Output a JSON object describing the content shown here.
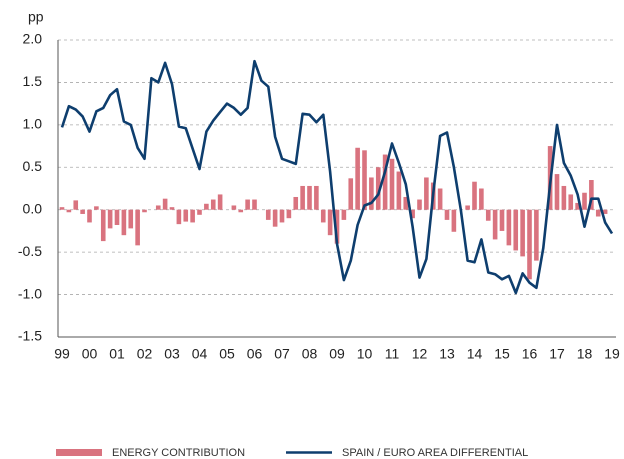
{
  "chart_data": {
    "type": "bar_line",
    "y_label": "pp",
    "categories": [
      "99",
      null,
      null,
      null,
      "00",
      null,
      null,
      null,
      "01",
      null,
      null,
      null,
      "02",
      null,
      null,
      null,
      "03",
      null,
      null,
      null,
      "04",
      null,
      null,
      null,
      "05",
      null,
      null,
      null,
      "06",
      null,
      null,
      null,
      "07",
      null,
      null,
      null,
      "08",
      null,
      null,
      null,
      "09",
      null,
      null,
      null,
      "10",
      null,
      null,
      null,
      "11",
      null,
      null,
      null,
      "12",
      null,
      null,
      null,
      "13",
      null,
      null,
      null,
      "14",
      null,
      null,
      null,
      "15",
      null,
      null,
      null,
      "16",
      null,
      null,
      null,
      "17",
      null,
      null,
      null,
      "18",
      null,
      null,
      null,
      "19"
    ],
    "series": [
      {
        "name": "ENERGY CONTRIBUTION",
        "type": "bar",
        "color": "#d9737f",
        "values": [
          0.03,
          -0.03,
          0.11,
          -0.05,
          -0.15,
          0.04,
          -0.37,
          -0.22,
          -0.18,
          -0.3,
          -0.22,
          -0.42,
          -0.03,
          0.0,
          0.05,
          0.13,
          0.03,
          -0.17,
          -0.14,
          -0.15,
          -0.06,
          0.07,
          0.12,
          0.18,
          0.0,
          0.05,
          -0.03,
          0.12,
          0.12,
          0.0,
          -0.12,
          -0.2,
          -0.15,
          -0.1,
          0.15,
          0.28,
          0.28,
          0.28,
          -0.15,
          -0.3,
          -0.4,
          -0.12,
          0.37,
          0.73,
          0.7,
          0.38,
          0.5,
          0.65,
          0.6,
          0.45,
          0.15,
          -0.1,
          0.12,
          0.38,
          0.32,
          0.25,
          -0.12,
          -0.26,
          0.0,
          0.05,
          0.33,
          0.25,
          -0.13,
          -0.35,
          -0.25,
          -0.42,
          -0.48,
          -0.55,
          -0.82,
          -0.6,
          0.0,
          0.75,
          0.42,
          0.28,
          0.18,
          0.08,
          0.2,
          0.35,
          -0.08,
          -0.05,
          0.0
        ]
      },
      {
        "name": "SPAIN / EURO AREA DIFFERENTIAL",
        "type": "line",
        "color": "#0e3e6e",
        "values": [
          0.97,
          1.22,
          1.18,
          1.1,
          0.92,
          1.16,
          1.2,
          1.35,
          1.42,
          1.04,
          1.0,
          0.73,
          0.6,
          1.55,
          1.5,
          1.73,
          1.48,
          0.98,
          0.96,
          0.72,
          0.48,
          0.92,
          1.05,
          1.15,
          1.25,
          1.2,
          1.12,
          1.2,
          1.75,
          1.52,
          1.45,
          0.86,
          0.6,
          0.57,
          0.54,
          1.13,
          1.12,
          1.03,
          1.12,
          0.45,
          -0.4,
          -0.83,
          -0.6,
          -0.18,
          0.05,
          0.08,
          0.18,
          0.45,
          0.78,
          0.55,
          0.3,
          -0.2,
          -0.8,
          -0.58,
          0.2,
          0.87,
          0.91,
          0.5,
          0.0,
          -0.6,
          -0.62,
          -0.35,
          -0.74,
          -0.76,
          -0.82,
          -0.78,
          -0.98,
          -0.75,
          -0.86,
          -0.92,
          -0.45,
          0.3,
          1.0,
          0.55,
          0.4,
          0.18,
          -0.2,
          0.13,
          0.13,
          -0.15,
          -0.28
        ]
      }
    ],
    "ylim": [
      -1.5,
      2.0
    ],
    "yticks": [
      -1.5,
      {
        "value": -1.0,
        "label": "-1.0"
      },
      -0.5,
      {
        "value": 0,
        "label": "0.0"
      },
      0.5,
      {
        "value": 1.0,
        "label": "1.0"
      },
      1.5,
      {
        "value": 2.0,
        "label": "2.0"
      }
    ],
    "grid": true
  }
}
